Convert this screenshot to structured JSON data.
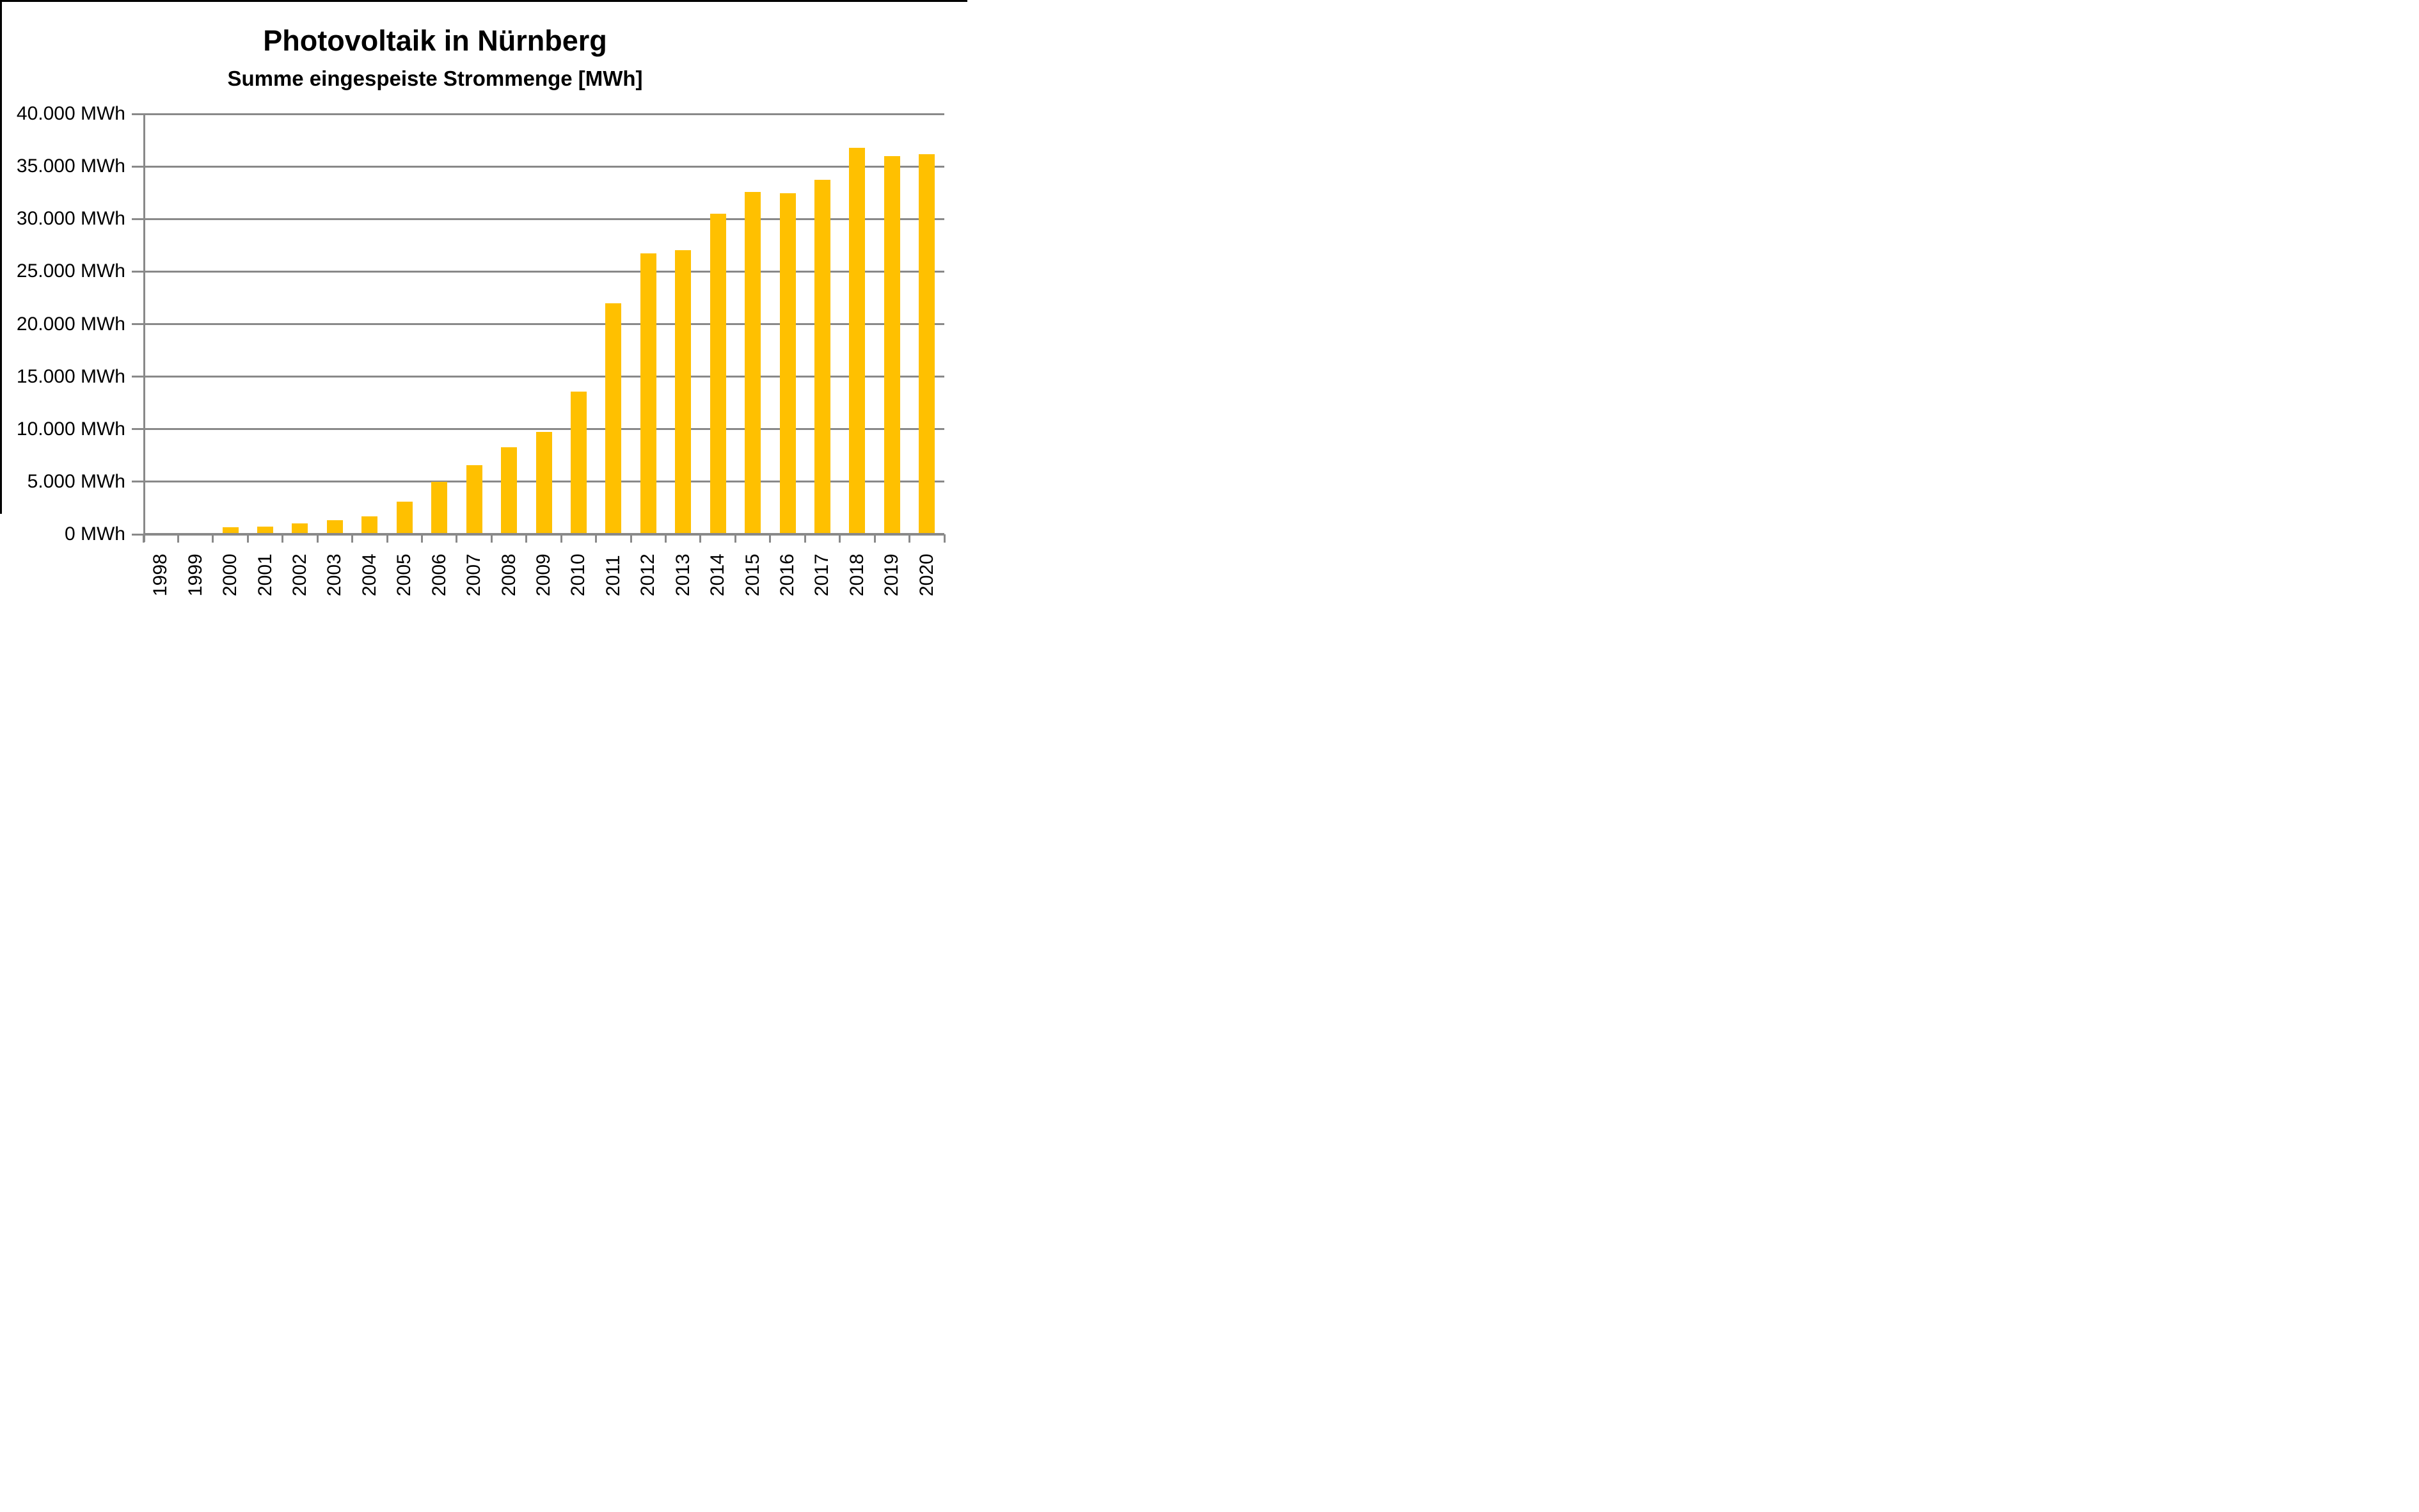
{
  "page": {
    "background": "#FFFFFF",
    "frame_color": "#000000"
  },
  "chart_data": {
    "type": "bar",
    "title": "Photovoltaik in Nürnberg",
    "subtitle": "Summe eingespeiste Strommenge [MWh]",
    "categories": [
      "1998",
      "1999",
      "2000",
      "2001",
      "2002",
      "2003",
      "2004",
      "2005",
      "2006",
      "2007",
      "2008",
      "2009",
      "2010",
      "2011",
      "2012",
      "2013",
      "2014",
      "2015",
      "2016",
      "2017",
      "2018",
      "2019",
      "2020"
    ],
    "values": [
      0,
      0,
      700,
      750,
      1050,
      1350,
      1700,
      3100,
      5000,
      6600,
      8300,
      9750,
      13600,
      22000,
      26750,
      27050,
      30500,
      32600,
      32450,
      33700,
      36750,
      36000,
      36150
    ],
    "unit": "MWh",
    "ylim": [
      0,
      40000
    ],
    "y_tick_step": 5000,
    "y_tick_labels": [
      "0 MWh",
      "5.000 MWh",
      "10.000 MWh",
      "15.000 MWh",
      "20.000 MWh",
      "25.000 MWh",
      "30.000 MWh",
      "35.000 MWh",
      "40.000 MWh"
    ],
    "bar_color": "#FFC000",
    "grid_color": "#898989",
    "axis_color": "#898989",
    "grid": true,
    "legend": "none",
    "x_label_rotation": -90
  }
}
